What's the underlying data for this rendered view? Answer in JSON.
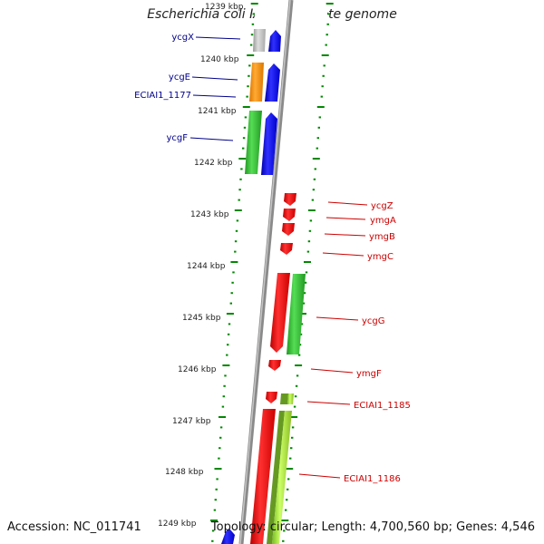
{
  "title": "Escherichia coli IAI1, complete genome",
  "footer": {
    "accession": "Accession: NC_011741",
    "summary": "Topology: circular; Length: 4,700,560 bp; Genes: 4,546"
  },
  "kbp_labels": [
    "1239 kbp",
    "1240 kbp",
    "1241 kbp",
    "1242 kbp",
    "1243 kbp",
    "1244 kbp",
    "1245 kbp",
    "1246 kbp",
    "1247 kbp",
    "1248 kbp",
    "1249 kbp"
  ],
  "left_genes": [
    "ycgX",
    "ycgE",
    "ECIAI1_1177",
    "ycgF"
  ],
  "right_genes": [
    "ycgZ",
    "ymgA",
    "ymgB",
    "ymgC",
    "ycgG",
    "ymgF",
    "ECIAI1_1185",
    "ECIAI1_1186"
  ],
  "colors": {
    "backbone": "#8a8a8a",
    "forward_cds": "#1010ee",
    "reverse_cds": "#ee1111",
    "green_feature": "#33bb33",
    "orange_feature": "#ff9900",
    "grey_feature": "#bbbbbb",
    "lime_feature": "#99dd33",
    "tick": "#008800",
    "left_label": "#00008b",
    "right_label": "#cc0000"
  }
}
